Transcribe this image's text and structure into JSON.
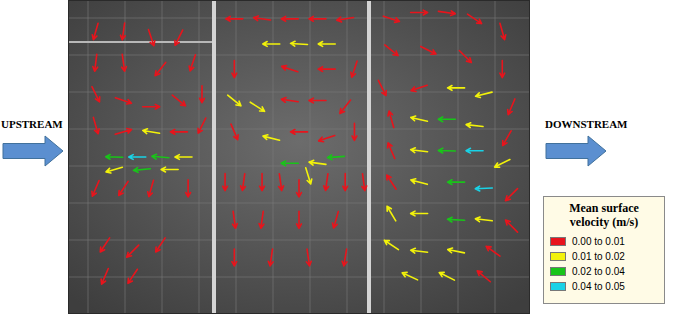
{
  "chart_data": {
    "type": "quiver",
    "xlim": [
      0,
      100
    ],
    "ylim": [
      0,
      100
    ],
    "tick_labels": false,
    "legend": "lower right",
    "annotations": [
      "UPSTREAM",
      "DOWNSTREAM"
    ],
    "color_bar": {
      "title": "Mean surface velocity (m/s)",
      "bins": [
        {
          "min": 0.0,
          "max": 0.01,
          "label": "0.00 to 0.01",
          "color": "#e8141c"
        },
        {
          "min": 0.01,
          "max": 0.02,
          "label": "0.01 to 0.02",
          "color": "#f2f20a"
        },
        {
          "min": 0.02,
          "max": 0.04,
          "label": "0.02 to 0.04",
          "color": "#19c419"
        },
        {
          "min": 0.04,
          "max": 0.05,
          "label": "0.04 to 0.05",
          "color": "#19d2e6"
        }
      ]
    },
    "vectors": [
      {
        "x": 6,
        "y": 90,
        "u": -0.002,
        "v": -0.007
      },
      {
        "x": 12,
        "y": 90,
        "u": -0.001,
        "v": -0.007
      },
      {
        "x": 18,
        "y": 88,
        "u": 0.002,
        "v": -0.006
      },
      {
        "x": 24,
        "y": 88,
        "u": -0.003,
        "v": -0.006
      },
      {
        "x": 6,
        "y": 80,
        "u": -0.001,
        "v": -0.008
      },
      {
        "x": 12,
        "y": 80,
        "u": 0.001,
        "v": -0.007
      },
      {
        "x": 20,
        "y": 78,
        "u": -0.004,
        "v": -0.005
      },
      {
        "x": 27,
        "y": 80,
        "u": -0.002,
        "v": -0.006
      },
      {
        "x": 6,
        "y": 70,
        "u": 0.003,
        "v": -0.006
      },
      {
        "x": 12,
        "y": 68,
        "u": 0.006,
        "v": -0.002
      },
      {
        "x": 18,
        "y": 66,
        "u": 0.007,
        "v": 0.0
      },
      {
        "x": 24,
        "y": 68,
        "u": 0.005,
        "v": -0.004
      },
      {
        "x": 29,
        "y": 70,
        "u": 0.0,
        "v": -0.007
      },
      {
        "x": 6,
        "y": 60,
        "u": 0.002,
        "v": -0.007
      },
      {
        "x": 12,
        "y": 58,
        "u": 0.007,
        "v": 0.002
      },
      {
        "x": 18,
        "y": 58,
        "u": -0.012,
        "v": 0.002
      },
      {
        "x": 24,
        "y": 58,
        "u": -0.008,
        "v": 0.0
      },
      {
        "x": 29,
        "y": 60,
        "u": -0.003,
        "v": -0.006
      },
      {
        "x": 10,
        "y": 50,
        "u": -0.03,
        "v": 0.001
      },
      {
        "x": 15,
        "y": 50,
        "u": -0.042,
        "v": 0.0
      },
      {
        "x": 20,
        "y": 50,
        "u": -0.025,
        "v": 0.002
      },
      {
        "x": 25,
        "y": 50,
        "u": -0.015,
        "v": 0.0
      },
      {
        "x": 10,
        "y": 46,
        "u": -0.014,
        "v": -0.004
      },
      {
        "x": 16,
        "y": 46,
        "u": -0.022,
        "v": -0.002
      },
      {
        "x": 22,
        "y": 46,
        "u": -0.013,
        "v": 0.0
      },
      {
        "x": 6,
        "y": 40,
        "u": -0.003,
        "v": -0.007
      },
      {
        "x": 12,
        "y": 40,
        "u": -0.004,
        "v": -0.006
      },
      {
        "x": 18,
        "y": 40,
        "u": -0.002,
        "v": -0.007
      },
      {
        "x": 26,
        "y": 40,
        "u": 0.0,
        "v": -0.007
      },
      {
        "x": 8,
        "y": 22,
        "u": -0.004,
        "v": -0.006
      },
      {
        "x": 14,
        "y": 20,
        "u": -0.005,
        "v": -0.005
      },
      {
        "x": 20,
        "y": 22,
        "u": -0.004,
        "v": -0.006
      },
      {
        "x": 8,
        "y": 12,
        "u": -0.003,
        "v": -0.007
      },
      {
        "x": 14,
        "y": 12,
        "u": -0.004,
        "v": -0.006
      },
      {
        "x": 36,
        "y": 94,
        "u": -0.007,
        "v": 0.0
      },
      {
        "x": 42,
        "y": 94,
        "u": -0.007,
        "v": 0.001
      },
      {
        "x": 48,
        "y": 94,
        "u": -0.008,
        "v": 0.0
      },
      {
        "x": 54,
        "y": 94,
        "u": -0.007,
        "v": 0.0
      },
      {
        "x": 60,
        "y": 94,
        "u": -0.006,
        "v": -0.001
      },
      {
        "x": 44,
        "y": 86,
        "u": -0.014,
        "v": 0.0
      },
      {
        "x": 50,
        "y": 86,
        "u": -0.016,
        "v": 0.001
      },
      {
        "x": 56,
        "y": 86,
        "u": -0.013,
        "v": 0.0
      },
      {
        "x": 36,
        "y": 78,
        "u": 0.0,
        "v": -0.007
      },
      {
        "x": 48,
        "y": 78,
        "u": -0.006,
        "v": 0.002
      },
      {
        "x": 56,
        "y": 78,
        "u": -0.007,
        "v": 0.0
      },
      {
        "x": 62,
        "y": 78,
        "u": -0.002,
        "v": -0.006
      },
      {
        "x": 36,
        "y": 68,
        "u": 0.01,
        "v": -0.008
      },
      {
        "x": 41,
        "y": 66,
        "u": 0.011,
        "v": -0.007
      },
      {
        "x": 48,
        "y": 68,
        "u": -0.007,
        "v": 0.001
      },
      {
        "x": 54,
        "y": 68,
        "u": -0.008,
        "v": 0.0
      },
      {
        "x": 60,
        "y": 66,
        "u": -0.004,
        "v": -0.005
      },
      {
        "x": 36,
        "y": 58,
        "u": 0.003,
        "v": -0.007
      },
      {
        "x": 44,
        "y": 56,
        "u": -0.012,
        "v": 0.003
      },
      {
        "x": 50,
        "y": 58,
        "u": -0.007,
        "v": 0.0
      },
      {
        "x": 56,
        "y": 56,
        "u": -0.006,
        "v": -0.002
      },
      {
        "x": 62,
        "y": 58,
        "u": 0.0,
        "v": -0.007
      },
      {
        "x": 48,
        "y": 48,
        "u": -0.022,
        "v": 0.0
      },
      {
        "x": 54,
        "y": 48,
        "u": -0.015,
        "v": 0.002
      },
      {
        "x": 58,
        "y": 50,
        "u": -0.028,
        "v": -0.002
      },
      {
        "x": 52,
        "y": 44,
        "u": 0.004,
        "v": -0.013
      },
      {
        "x": 34,
        "y": 42,
        "u": 0.0,
        "v": -0.007
      },
      {
        "x": 38,
        "y": 42,
        "u": -0.001,
        "v": -0.007
      },
      {
        "x": 42,
        "y": 42,
        "u": 0.0,
        "v": -0.008
      },
      {
        "x": 46,
        "y": 42,
        "u": 0.001,
        "v": -0.007
      },
      {
        "x": 50,
        "y": 40,
        "u": 0.0,
        "v": -0.007
      },
      {
        "x": 56,
        "y": 42,
        "u": -0.001,
        "v": -0.007
      },
      {
        "x": 60,
        "y": 42,
        "u": 0.0,
        "v": -0.007
      },
      {
        "x": 64,
        "y": 42,
        "u": 0.001,
        "v": -0.007
      },
      {
        "x": 36,
        "y": 30,
        "u": 0.001,
        "v": -0.007
      },
      {
        "x": 42,
        "y": 30,
        "u": -0.001,
        "v": -0.007
      },
      {
        "x": 50,
        "y": 30,
        "u": 0.0,
        "v": -0.008
      },
      {
        "x": 58,
        "y": 30,
        "u": -0.002,
        "v": -0.007
      },
      {
        "x": 36,
        "y": 18,
        "u": 0.0,
        "v": -0.007
      },
      {
        "x": 44,
        "y": 18,
        "u": -0.001,
        "v": -0.007
      },
      {
        "x": 52,
        "y": 18,
        "u": 0.001,
        "v": -0.007
      },
      {
        "x": 60,
        "y": 18,
        "u": -0.001,
        "v": -0.006
      },
      {
        "x": 70,
        "y": 94,
        "u": 0.006,
        "v": -0.002
      },
      {
        "x": 76,
        "y": 96,
        "u": 0.007,
        "v": 0.0
      },
      {
        "x": 82,
        "y": 96,
        "u": 0.007,
        "v": -0.001
      },
      {
        "x": 88,
        "y": 94,
        "u": 0.006,
        "v": -0.004
      },
      {
        "x": 94,
        "y": 90,
        "u": 0.002,
        "v": -0.007
      },
      {
        "x": 70,
        "y": 84,
        "u": 0.005,
        "v": -0.004
      },
      {
        "x": 78,
        "y": 84,
        "u": 0.006,
        "v": -0.003
      },
      {
        "x": 86,
        "y": 82,
        "u": 0.005,
        "v": -0.005
      },
      {
        "x": 94,
        "y": 78,
        "u": 0.0,
        "v": -0.008
      },
      {
        "x": 68,
        "y": 72,
        "u": 0.003,
        "v": -0.006
      },
      {
        "x": 76,
        "y": 72,
        "u": -0.006,
        "v": -0.002
      },
      {
        "x": 84,
        "y": 72,
        "u": -0.014,
        "v": 0.0
      },
      {
        "x": 90,
        "y": 70,
        "u": -0.016,
        "v": -0.004
      },
      {
        "x": 96,
        "y": 66,
        "u": -0.003,
        "v": -0.007
      },
      {
        "x": 70,
        "y": 62,
        "u": -0.002,
        "v": 0.007
      },
      {
        "x": 76,
        "y": 62,
        "u": -0.013,
        "v": 0.003
      },
      {
        "x": 82,
        "y": 62,
        "u": -0.028,
        "v": 0.0
      },
      {
        "x": 88,
        "y": 60,
        "u": -0.018,
        "v": 0.002
      },
      {
        "x": 95,
        "y": 56,
        "u": -0.004,
        "v": -0.007
      },
      {
        "x": 70,
        "y": 52,
        "u": -0.003,
        "v": 0.007
      },
      {
        "x": 76,
        "y": 52,
        "u": -0.016,
        "v": 0.002
      },
      {
        "x": 82,
        "y": 52,
        "u": -0.032,
        "v": 0.001
      },
      {
        "x": 88,
        "y": 52,
        "u": -0.045,
        "v": 0.0
      },
      {
        "x": 94,
        "y": 48,
        "u": -0.012,
        "v": -0.006
      },
      {
        "x": 70,
        "y": 42,
        "u": -0.004,
        "v": 0.006
      },
      {
        "x": 76,
        "y": 42,
        "u": -0.015,
        "v": 0.004
      },
      {
        "x": 84,
        "y": 42,
        "u": -0.03,
        "v": 0.0
      },
      {
        "x": 90,
        "y": 40,
        "u": -0.043,
        "v": -0.002
      },
      {
        "x": 96,
        "y": 38,
        "u": -0.006,
        "v": -0.006
      },
      {
        "x": 70,
        "y": 32,
        "u": -0.006,
        "v": 0.01
      },
      {
        "x": 76,
        "y": 32,
        "u": -0.016,
        "v": 0.0
      },
      {
        "x": 84,
        "y": 30,
        "u": -0.022,
        "v": 0.001
      },
      {
        "x": 90,
        "y": 30,
        "u": -0.017,
        "v": 0.002
      },
      {
        "x": 96,
        "y": 28,
        "u": -0.005,
        "v": 0.005
      },
      {
        "x": 70,
        "y": 22,
        "u": -0.012,
        "v": 0.008
      },
      {
        "x": 76,
        "y": 20,
        "u": -0.017,
        "v": 0.002
      },
      {
        "x": 84,
        "y": 20,
        "u": -0.015,
        "v": 0.003
      },
      {
        "x": 92,
        "y": 20,
        "u": -0.007,
        "v": 0.005
      },
      {
        "x": 74,
        "y": 12,
        "u": -0.013,
        "v": 0.006
      },
      {
        "x": 82,
        "y": 12,
        "u": -0.012,
        "v": 0.006
      },
      {
        "x": 90,
        "y": 12,
        "u": -0.006,
        "v": 0.005
      }
    ]
  }
}
